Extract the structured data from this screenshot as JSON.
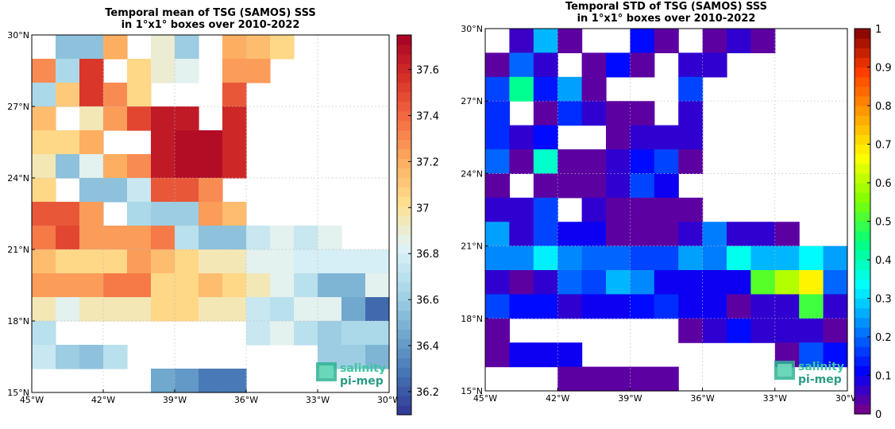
{
  "chart_data": [
    {
      "type": "heatmap",
      "title": [
        "Temporal mean of TSG (SAMOS) SSS",
        "in 1°x1° boxes over 2010-2022"
      ],
      "x_ticks": [
        "45°W",
        "42°W",
        "39°W",
        "36°W",
        "33°W",
        "30°W"
      ],
      "y_ticks": [
        "15°N",
        "18°N",
        "21°N",
        "24°N",
        "27°N",
        "30°N"
      ],
      "xlim": [
        -45,
        -30
      ],
      "ylim": [
        15,
        30
      ],
      "grid": true,
      "colorbar": {
        "ticks": [
          "36.2",
          "36.4",
          "36.6",
          "36.8",
          "37",
          "37.2",
          "37.4",
          "37.6"
        ],
        "range": [
          36.1,
          37.75
        ],
        "colormap": "RdYlBu_r"
      },
      "logo": [
        "salinity",
        "pi-mep"
      ],
      "rows_north_to_south": [
        [
          null,
          36.55,
          36.55,
          37.2,
          null,
          36.9,
          36.6,
          null,
          37.2,
          37.15,
          37.05,
          null,
          null,
          null,
          null
        ],
        [
          37.3,
          36.65,
          37.55,
          null,
          37.05,
          36.9,
          36.85,
          null,
          37.25,
          37.25,
          null,
          null,
          null,
          null,
          null
        ],
        [
          36.65,
          37.1,
          37.55,
          37.3,
          37.05,
          null,
          null,
          null,
          37.45,
          null,
          null,
          null,
          null,
          null,
          null
        ],
        [
          37.15,
          null,
          36.95,
          37.25,
          37.5,
          37.65,
          37.65,
          null,
          37.6,
          null,
          null,
          null,
          null,
          null,
          null
        ],
        [
          37.05,
          37.05,
          37.2,
          null,
          null,
          37.65,
          37.7,
          37.7,
          37.6,
          null,
          null,
          null,
          null,
          null,
          null
        ],
        [
          36.95,
          36.55,
          36.85,
          37.2,
          37.3,
          37.65,
          37.7,
          37.7,
          37.6,
          null,
          null,
          null,
          null,
          null,
          null
        ],
        [
          37.05,
          null,
          36.55,
          36.55,
          36.75,
          37.45,
          37.45,
          37.3,
          null,
          null,
          null,
          null,
          null,
          null,
          null
        ],
        [
          37.45,
          37.45,
          37.25,
          null,
          36.65,
          36.6,
          36.6,
          37.25,
          37.15,
          null,
          null,
          null,
          null,
          null,
          null
        ],
        [
          37.35,
          37.5,
          37.25,
          37.25,
          37.25,
          37.35,
          36.7,
          36.55,
          36.55,
          36.75,
          36.85,
          36.75,
          36.85,
          null,
          null
        ],
        [
          37.15,
          37.05,
          37.05,
          37.05,
          37.25,
          37.15,
          37.05,
          36.95,
          36.95,
          36.85,
          36.85,
          36.8,
          36.8,
          36.8,
          36.8
        ],
        [
          37.25,
          37.25,
          37.25,
          37.35,
          37.35,
          37.05,
          37.05,
          37.15,
          37.05,
          36.95,
          36.85,
          36.7,
          36.5,
          36.5,
          36.85
        ],
        [
          36.95,
          36.85,
          36.95,
          36.95,
          36.95,
          37.05,
          37.05,
          36.95,
          36.95,
          36.75,
          36.7,
          36.85,
          36.85,
          36.45,
          36.25
        ],
        [
          36.7,
          null,
          null,
          null,
          null,
          null,
          null,
          null,
          null,
          36.75,
          36.85,
          36.7,
          36.6,
          36.65,
          36.65
        ],
        [
          36.75,
          36.6,
          36.55,
          36.7,
          null,
          null,
          null,
          null,
          null,
          null,
          null,
          null,
          36.6,
          36.6,
          36.5
        ],
        [
          null,
          null,
          null,
          null,
          null,
          36.45,
          36.4,
          36.3,
          36.3,
          null,
          null,
          null,
          null,
          null,
          null
        ]
      ]
    },
    {
      "type": "heatmap",
      "title": [
        "Temporal STD of TSG (SAMOS) SSS",
        "in 1°x1° boxes over 2010-2022"
      ],
      "x_ticks": [
        "45°W",
        "42°W",
        "39°W",
        "36°W",
        "33°W",
        "30°W"
      ],
      "y_ticks": [
        "15°N",
        "18°N",
        "21°N",
        "24°N",
        "27°N",
        "30°N"
      ],
      "xlim": [
        -45,
        -30
      ],
      "ylim": [
        15,
        30
      ],
      "grid": true,
      "colorbar": {
        "ticks": [
          "0",
          "0.1",
          "0.2",
          "0.3",
          "0.4",
          "0.5",
          "0.6",
          "0.7",
          "0.8",
          "0.9",
          "1"
        ],
        "range": [
          0,
          1
        ],
        "colormap": "jet-purple"
      },
      "logo": [
        "salinity",
        "pi-mep"
      ],
      "rows_north_to_south": [
        [
          null,
          0.06,
          0.27,
          0.03,
          null,
          null,
          0.12,
          0.03,
          null,
          0.03,
          0.07,
          0.03,
          null,
          null,
          null
        ],
        [
          0.03,
          0.2,
          0.07,
          null,
          0.03,
          0.12,
          0.03,
          null,
          0.07,
          0.07,
          null,
          null,
          null,
          null,
          null
        ],
        [
          0.17,
          0.43,
          0.13,
          0.25,
          0.03,
          null,
          null,
          null,
          0.17,
          null,
          null,
          null,
          null,
          null,
          null
        ],
        [
          0.15,
          null,
          0.03,
          0.15,
          0.07,
          0.03,
          0.03,
          null,
          0.07,
          null,
          null,
          null,
          null,
          null,
          null
        ],
        [
          0.15,
          0.07,
          0.12,
          null,
          null,
          0.03,
          0.07,
          0.07,
          0.07,
          null,
          null,
          null,
          null,
          null,
          null
        ],
        [
          0.2,
          0.03,
          0.38,
          0.03,
          0.03,
          0.07,
          0.12,
          0.17,
          0.03,
          null,
          null,
          null,
          null,
          null,
          null
        ],
        [
          0.03,
          null,
          0.03,
          0.03,
          0.03,
          0.07,
          0.17,
          0.1,
          null,
          null,
          null,
          null,
          null,
          null,
          null
        ],
        [
          0.07,
          0.07,
          0.17,
          null,
          0.07,
          0.03,
          0.03,
          0.03,
          0.03,
          null,
          null,
          null,
          null,
          null,
          null
        ],
        [
          0.25,
          0.07,
          0.17,
          0.1,
          0.1,
          0.03,
          0.03,
          0.03,
          0.07,
          0.22,
          0.07,
          0.07,
          0.03,
          null,
          null
        ],
        [
          0.23,
          0.23,
          0.32,
          0.23,
          0.2,
          0.2,
          0.17,
          0.17,
          0.25,
          0.22,
          0.35,
          0.27,
          0.27,
          0.33,
          0.25
        ],
        [
          0.07,
          0.03,
          0.07,
          0.2,
          0.17,
          0.27,
          0.23,
          0.1,
          0.1,
          0.1,
          0.1,
          0.52,
          0.6,
          0.68,
          0.2
        ],
        [
          0.17,
          0.12,
          0.12,
          0.07,
          0.1,
          0.1,
          0.12,
          0.15,
          0.1,
          0.1,
          0.03,
          0.07,
          0.07,
          0.5,
          0.07
        ],
        [
          0.03,
          null,
          null,
          null,
          null,
          null,
          null,
          null,
          0.03,
          0.07,
          0.12,
          0.07,
          0.07,
          0.07,
          0.03
        ],
        [
          0.03,
          0.1,
          0.1,
          0.1,
          null,
          null,
          null,
          null,
          null,
          null,
          null,
          null,
          0.03,
          0.18,
          0.12
        ],
        [
          null,
          null,
          null,
          0.03,
          0.03,
          0.03,
          0.03,
          0.03,
          null,
          null,
          null,
          null,
          null,
          null,
          null
        ]
      ]
    }
  ]
}
